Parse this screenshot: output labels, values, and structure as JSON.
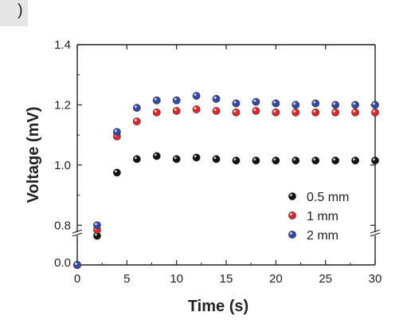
{
  "panel_label": ")",
  "chart_data": {
    "type": "scatter",
    "title": "",
    "xlabel": "Time (s)",
    "ylabel": "Voltage (mV)",
    "xlim": [
      0,
      30
    ],
    "ylim_lower_segment": [
      0,
      0.02
    ],
    "ylim_upper_segment": [
      0.7,
      1.4
    ],
    "axis_break": true,
    "x_ticks": [
      "0",
      "5",
      "10",
      "15",
      "20",
      "25",
      "30"
    ],
    "y_ticks_upper": [
      "0.8",
      "1.0",
      "1.2",
      "1.4"
    ],
    "y_ticks_lower": [
      "0.0"
    ],
    "legend_position": "lower-right",
    "series": [
      {
        "name": "0.5 mm",
        "color": "#111111",
        "x": [
          0,
          2,
          4,
          6,
          8,
          10,
          12,
          14,
          16,
          18,
          20,
          22,
          24,
          26,
          28,
          30
        ],
        "y": [
          0.0,
          0.765,
          0.975,
          1.02,
          1.03,
          1.02,
          1.025,
          1.02,
          1.015,
          1.015,
          1.015,
          1.015,
          1.015,
          1.015,
          1.015,
          1.015
        ]
      },
      {
        "name": "1 mm",
        "color": "#e0262b",
        "x": [
          0,
          2,
          4,
          6,
          8,
          10,
          12,
          14,
          16,
          18,
          20,
          22,
          24,
          26,
          28,
          30
        ],
        "y": [
          0.0,
          0.785,
          1.095,
          1.145,
          1.175,
          1.18,
          1.185,
          1.18,
          1.175,
          1.18,
          1.175,
          1.175,
          1.175,
          1.175,
          1.175,
          1.175
        ]
      },
      {
        "name": "2 mm",
        "color": "#3548a5",
        "x": [
          0,
          2,
          4,
          6,
          8,
          10,
          12,
          14,
          16,
          18,
          20,
          22,
          24,
          26,
          28,
          30
        ],
        "y": [
          0.0,
          0.8,
          1.11,
          1.19,
          1.215,
          1.215,
          1.23,
          1.22,
          1.205,
          1.21,
          1.205,
          1.2,
          1.205,
          1.2,
          1.2,
          1.2
        ]
      }
    ]
  }
}
